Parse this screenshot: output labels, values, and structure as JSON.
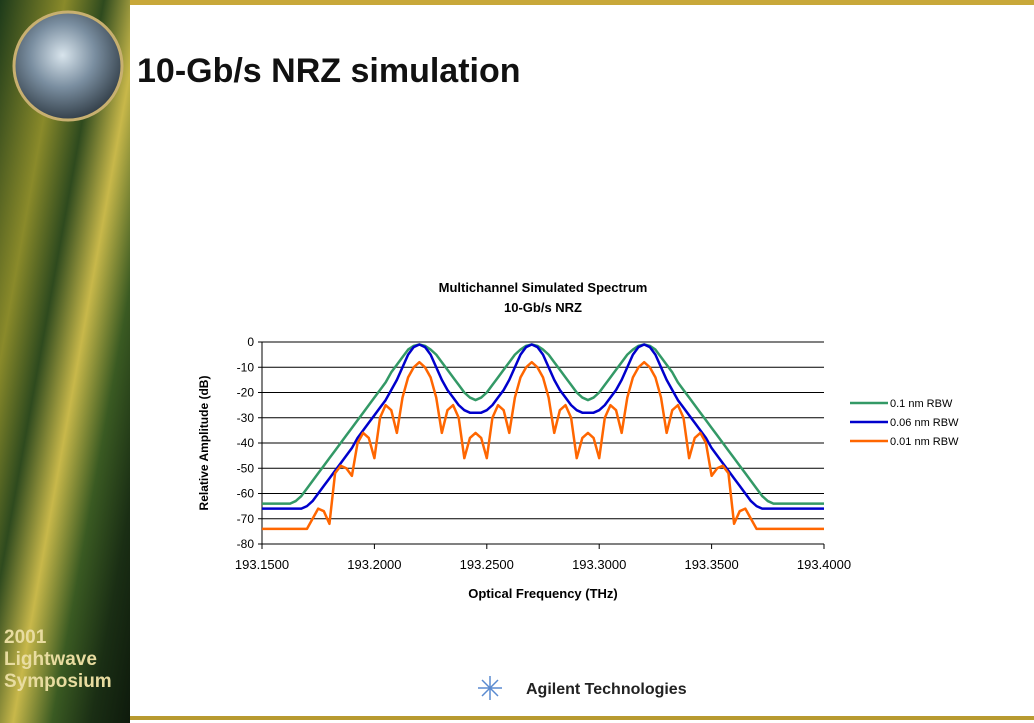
{
  "slide": {
    "title": "10-Gb/s NRZ simulation",
    "event_lines": [
      "2001",
      "Lightwave",
      "Symposium"
    ],
    "logo": "Agilent Technologies"
  },
  "chart_data": {
    "type": "line",
    "title": "Multichannel Simulated Spectrum",
    "subtitle": "10-Gb/s NRZ",
    "x_label": "Optical Frequency (THz)",
    "y_label": "Relative Amplitude (dB)",
    "xlim": [
      193.15,
      193.4
    ],
    "xticks": [
      {
        "value": 193.15,
        "label": "193.1500"
      },
      {
        "value": 193.2,
        "label": "193.2000"
      },
      {
        "value": 193.25,
        "label": "193.2500"
      },
      {
        "value": 193.3,
        "label": "193.3000"
      },
      {
        "value": 193.35,
        "label": "193.3500"
      },
      {
        "value": 193.4,
        "label": "193.4000"
      }
    ],
    "ylim": [
      -80,
      0
    ],
    "yticks": [
      0,
      -10,
      -20,
      -30,
      -40,
      -50,
      -60,
      -70,
      -80
    ],
    "grid": true,
    "legend": "right",
    "x": [
      193.15,
      193.1525,
      193.155,
      193.1575,
      193.16,
      193.1625,
      193.165,
      193.1675,
      193.17,
      193.1725,
      193.175,
      193.1775,
      193.18,
      193.1825,
      193.185,
      193.1875,
      193.19,
      193.1925,
      193.195,
      193.1975,
      193.2,
      193.2025,
      193.205,
      193.2075,
      193.21,
      193.2125,
      193.215,
      193.2175,
      193.22,
      193.2225,
      193.225,
      193.2275,
      193.23,
      193.2325,
      193.235,
      193.2375,
      193.24,
      193.2425,
      193.245,
      193.2475,
      193.25,
      193.2525,
      193.255,
      193.2575,
      193.26,
      193.2625,
      193.265,
      193.2675,
      193.27,
      193.2725,
      193.275,
      193.2775,
      193.28,
      193.2825,
      193.285,
      193.2875,
      193.29,
      193.2925,
      193.295,
      193.2975,
      193.3,
      193.3025,
      193.305,
      193.3075,
      193.31,
      193.3125,
      193.315,
      193.3175,
      193.32,
      193.3225,
      193.325,
      193.3275,
      193.33,
      193.3325,
      193.335,
      193.3375,
      193.34,
      193.3425,
      193.345,
      193.3475,
      193.35,
      193.3525,
      193.355,
      193.3575,
      193.36,
      193.3625,
      193.365,
      193.3675,
      193.37,
      193.3725,
      193.375,
      193.3775,
      193.38,
      193.3825,
      193.385,
      193.3875,
      193.39,
      193.3925,
      193.395,
      193.3975,
      193.4
    ],
    "series": [
      {
        "name": "0.1 nm RBW",
        "color": "#339966",
        "values": [
          -64,
          -64,
          -64,
          -64,
          -64,
          -64,
          -63,
          -61,
          -58,
          -55,
          -52,
          -49,
          -46,
          -43,
          -40,
          -37,
          -34,
          -31,
          -28,
          -25,
          -22,
          -19,
          -16,
          -12,
          -9,
          -6,
          -3,
          -1.5,
          -1,
          -1.5,
          -3,
          -5,
          -8,
          -11,
          -14,
          -17,
          -20,
          -22,
          -23,
          -22,
          -20,
          -17,
          -14,
          -11,
          -8,
          -5,
          -3,
          -1.5,
          -1,
          -1.5,
          -3,
          -5,
          -8,
          -11,
          -14,
          -17,
          -20,
          -22,
          -23,
          -22,
          -20,
          -17,
          -14,
          -11,
          -8,
          -5,
          -3,
          -1.5,
          -1,
          -1.5,
          -3,
          -6,
          -9,
          -12,
          -16,
          -19,
          -22,
          -25,
          -28,
          -31,
          -34,
          -37,
          -40,
          -43,
          -46,
          -49,
          -52,
          -55,
          -58,
          -61,
          -63,
          -64,
          -64,
          -64,
          -64,
          -64,
          -64,
          -64,
          -64,
          -64,
          -64
        ]
      },
      {
        "name": "0.06 nm RBW",
        "color": "#0000cc",
        "values": [
          -66,
          -66,
          -66,
          -66,
          -66,
          -66,
          -66,
          -66,
          -65,
          -63,
          -60,
          -57,
          -54,
          -51,
          -48,
          -45,
          -42,
          -38,
          -35,
          -32,
          -29,
          -26,
          -23,
          -19,
          -15,
          -10,
          -5,
          -2,
          -1,
          -2,
          -5,
          -10,
          -15,
          -19,
          -22,
          -25,
          -27,
          -28,
          -28,
          -28,
          -27,
          -25,
          -22,
          -19,
          -15,
          -10,
          -5,
          -2,
          -1,
          -2,
          -5,
          -10,
          -15,
          -19,
          -22,
          -25,
          -27,
          -28,
          -28,
          -28,
          -27,
          -25,
          -22,
          -19,
          -15,
          -10,
          -5,
          -2,
          -1,
          -2,
          -5,
          -10,
          -15,
          -19,
          -23,
          -26,
          -29,
          -32,
          -35,
          -38,
          -42,
          -45,
          -48,
          -51,
          -54,
          -57,
          -60,
          -63,
          -65,
          -66,
          -66,
          -66,
          -66,
          -66,
          -66,
          -66,
          -66,
          -66,
          -66,
          -66,
          -66
        ]
      },
      {
        "name": "0.01 nm RBW",
        "color": "#ff6600",
        "values": [
          -74,
          -74,
          -74,
          -74,
          -74,
          -74,
          -74,
          -74,
          -74,
          -70,
          -66,
          -67,
          -72,
          -52,
          -49,
          -50,
          -53,
          -40,
          -36,
          -38,
          -46,
          -30,
          -25,
          -27,
          -36,
          -22,
          -14,
          -10,
          -8,
          -10,
          -14,
          -22,
          -36,
          -27,
          -25,
          -30,
          -46,
          -38,
          -36,
          -38,
          -46,
          -30,
          -25,
          -27,
          -36,
          -22,
          -14,
          -10,
          -8,
          -10,
          -14,
          -22,
          -36,
          -27,
          -25,
          -30,
          -46,
          -38,
          -36,
          -38,
          -46,
          -30,
          -25,
          -27,
          -36,
          -22,
          -14,
          -10,
          -8,
          -10,
          -14,
          -22,
          -36,
          -27,
          -25,
          -30,
          -46,
          -38,
          -36,
          -40,
          -53,
          -50,
          -49,
          -52,
          -72,
          -67,
          -66,
          -70,
          -74,
          -74,
          -74,
          -74,
          -74,
          -74,
          -74,
          -74,
          -74,
          -74,
          -74,
          -74,
          -74
        ]
      }
    ]
  }
}
